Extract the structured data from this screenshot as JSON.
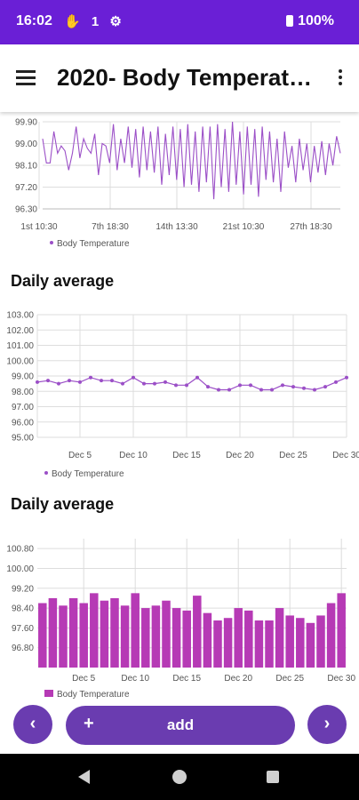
{
  "status_bar": {
    "time": "16:02",
    "icons_text": "✋ 1 ⚙",
    "battery": "100%"
  },
  "app_bar": {
    "title": "2020- Body Temperat…",
    "menu_icon": "hamburger-menu-icon",
    "more_icon": "more-vert-icon"
  },
  "theme": {
    "primary": "#6a1fd6",
    "series_line": "#9b4fc7",
    "bar_fill": "#b63ab5",
    "button": "#6a3cb0"
  },
  "charts": [
    {
      "section_title": ""
    },
    {
      "section_title": "Daily average"
    },
    {
      "section_title": "Daily average"
    }
  ],
  "bottom_bar": {
    "prev_label": "‹",
    "add_label": "add",
    "add_plus": "+",
    "next_label": "›"
  },
  "chart_data": [
    {
      "type": "line",
      "ylim": [
        96.3,
        99.9
      ],
      "yticks": [
        "99.90",
        "99.00",
        "98.10",
        "97.20",
        "96.30"
      ],
      "xticks": [
        "1st 10:30",
        "7th 18:30",
        "14th 13:30",
        "21st 10:30",
        "27th 18:30"
      ],
      "grid": true,
      "legend": "bottom-left",
      "series": [
        {
          "name": "Body Temperature",
          "values": [
            99.2,
            98.2,
            98.2,
            99.5,
            98.6,
            98.9,
            98.7,
            97.9,
            98.6,
            99.7,
            98.4,
            99.2,
            98.8,
            98.6,
            99.4,
            97.7,
            99.0,
            98.9,
            98.2,
            99.8,
            97.9,
            99.2,
            98.2,
            99.7,
            98.0,
            99.6,
            97.6,
            99.7,
            97.9,
            99.5,
            97.8,
            99.7,
            97.3,
            99.4,
            97.7,
            99.7,
            97.5,
            99.6,
            97.2,
            99.8,
            97.3,
            99.5,
            97.0,
            99.7,
            97.4,
            99.7,
            96.7,
            99.8,
            97.2,
            99.6,
            97.0,
            99.9,
            97.3,
            99.5,
            96.9,
            99.7,
            97.3,
            99.6,
            96.8,
            99.7,
            97.5,
            99.5,
            97.4,
            99.2,
            97.0,
            99.5,
            98.0,
            98.9,
            97.4,
            99.2,
            97.9,
            99.0,
            97.4,
            98.9,
            97.8,
            99.1,
            97.7,
            99.0,
            98.1,
            99.3,
            98.6
          ]
        }
      ]
    },
    {
      "type": "line",
      "ylim": [
        95,
        103
      ],
      "yticks": [
        "103.00",
        "102.00",
        "101.00",
        "100.00",
        "99.00",
        "98.00",
        "97.00",
        "96.00",
        "95.00"
      ],
      "categories": [
        "Dec 1",
        "Dec 2",
        "Dec 3",
        "Dec 4",
        "Dec 5",
        "Dec 6",
        "Dec 7",
        "Dec 8",
        "Dec 9",
        "Dec 10",
        "Dec 11",
        "Dec 12",
        "Dec 13",
        "Dec 14",
        "Dec 15",
        "Dec 16",
        "Dec 17",
        "Dec 18",
        "Dec 19",
        "Dec 20",
        "Dec 21",
        "Dec 22",
        "Dec 23",
        "Dec 24",
        "Dec 25",
        "Dec 26",
        "Dec 27",
        "Dec 28",
        "Dec 29",
        "Dec 30"
      ],
      "xtick_labels": [
        "Dec 5",
        "Dec 10",
        "Dec 15",
        "Dec 20",
        "Dec 25",
        "Dec 30"
      ],
      "grid": true,
      "legend": "bottom-left",
      "series": [
        {
          "name": "Body Temperature",
          "values": [
            98.6,
            98.7,
            98.5,
            98.7,
            98.6,
            98.9,
            98.7,
            98.7,
            98.5,
            98.9,
            98.5,
            98.5,
            98.6,
            98.4,
            98.4,
            98.9,
            98.3,
            98.1,
            98.1,
            98.4,
            98.4,
            98.1,
            98.1,
            98.4,
            98.3,
            98.2,
            98.1,
            98.3,
            98.6,
            98.9
          ]
        }
      ]
    },
    {
      "type": "bar",
      "ylim": [
        96,
        101.2
      ],
      "yticks": [
        "100.80",
        "100.00",
        "99.20",
        "98.40",
        "97.60",
        "96.80"
      ],
      "categories": [
        "Dec 1",
        "Dec 2",
        "Dec 3",
        "Dec 4",
        "Dec 5",
        "Dec 6",
        "Dec 7",
        "Dec 8",
        "Dec 9",
        "Dec 10",
        "Dec 11",
        "Dec 12",
        "Dec 13",
        "Dec 14",
        "Dec 15",
        "Dec 16",
        "Dec 17",
        "Dec 18",
        "Dec 19",
        "Dec 20",
        "Dec 21",
        "Dec 22",
        "Dec 23",
        "Dec 24",
        "Dec 25",
        "Dec 26",
        "Dec 27",
        "Dec 28",
        "Dec 29",
        "Dec 30"
      ],
      "xtick_labels": [
        "Dec 5",
        "Dec 10",
        "Dec 15",
        "Dec 20",
        "Dec 25",
        "Dec 30"
      ],
      "grid": true,
      "legend": "bottom-left",
      "series": [
        {
          "name": "Body Temperature",
          "values": [
            98.6,
            98.8,
            98.5,
            98.8,
            98.6,
            99.0,
            98.7,
            98.8,
            98.5,
            99.0,
            98.4,
            98.5,
            98.7,
            98.4,
            98.3,
            98.9,
            98.2,
            97.9,
            98.0,
            98.4,
            98.3,
            97.9,
            97.9,
            98.4,
            98.1,
            98.0,
            97.8,
            98.1,
            98.6,
            99.0
          ]
        }
      ]
    }
  ]
}
